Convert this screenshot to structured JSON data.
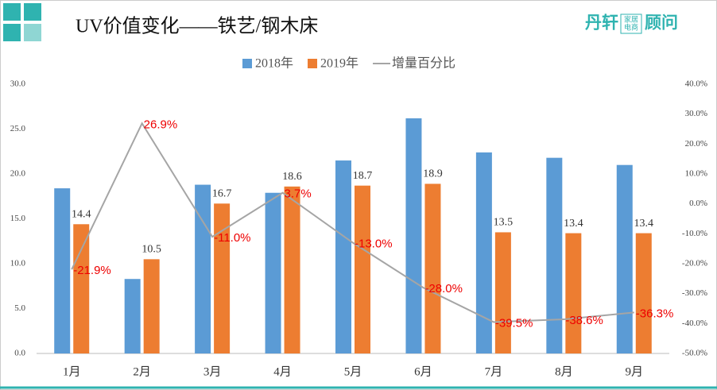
{
  "logo": {
    "left": "丹轩",
    "box_top": "家居",
    "box_bottom": "电商",
    "right": "顾问"
  },
  "chart_data": {
    "type": "bar-line",
    "title": "UV价值变化——铁艺/钢木床",
    "categories": [
      "1月",
      "2月",
      "3月",
      "4月",
      "5月",
      "6月",
      "7月",
      "8月",
      "9月"
    ],
    "series": [
      {
        "name": "2018年",
        "color": "#5b9bd5",
        "values": [
          18.4,
          8.3,
          18.8,
          17.9,
          21.5,
          26.2,
          22.4,
          21.8,
          21.0
        ]
      },
      {
        "name": "2019年",
        "color": "#ed7d31",
        "values": [
          14.4,
          10.5,
          16.7,
          18.6,
          18.7,
          18.9,
          13.5,
          13.4,
          13.4
        ]
      },
      {
        "name": "增量百分比",
        "color": "#a5a5a5",
        "axis": "y2",
        "values": [
          -21.9,
          26.9,
          -11.0,
          3.7,
          -13.0,
          -28.0,
          -39.5,
          -38.6,
          -36.3
        ],
        "value_labels": [
          "-21.9%",
          "26.9%",
          "-11.0%",
          "3.7%",
          "-13.0%",
          "-28.0%",
          "-39.5%",
          "-38.6%",
          "-36.3%"
        ]
      }
    ],
    "ylim": [
      0,
      30
    ],
    "yticks": [
      {
        "value": 0,
        "label": "0.0"
      },
      {
        "value": 5,
        "label": "5.0"
      },
      {
        "value": 10,
        "label": "10.0"
      },
      {
        "value": 15,
        "label": "15.0"
      },
      {
        "value": 20,
        "label": "20.0"
      },
      {
        "value": 25,
        "label": "25.0"
      },
      {
        "value": 30,
        "label": "30.0"
      }
    ],
    "y2lim": [
      -50,
      40
    ],
    "y2ticks": [
      {
        "value": -50,
        "label": "-50.0%"
      },
      {
        "value": -40,
        "label": "-40.0%"
      },
      {
        "value": -30,
        "label": "-30.0%"
      },
      {
        "value": -20,
        "label": "-20.0%"
      },
      {
        "value": -10,
        "label": "-10.0%"
      },
      {
        "value": 0,
        "label": "0.0%"
      },
      {
        "value": 10,
        "label": "10.0%"
      },
      {
        "value": 20,
        "label": "20.0%"
      },
      {
        "value": 30,
        "label": "30.0%"
      },
      {
        "value": 40,
        "label": "40.0%"
      }
    ],
    "grid": false,
    "legend": "top"
  }
}
